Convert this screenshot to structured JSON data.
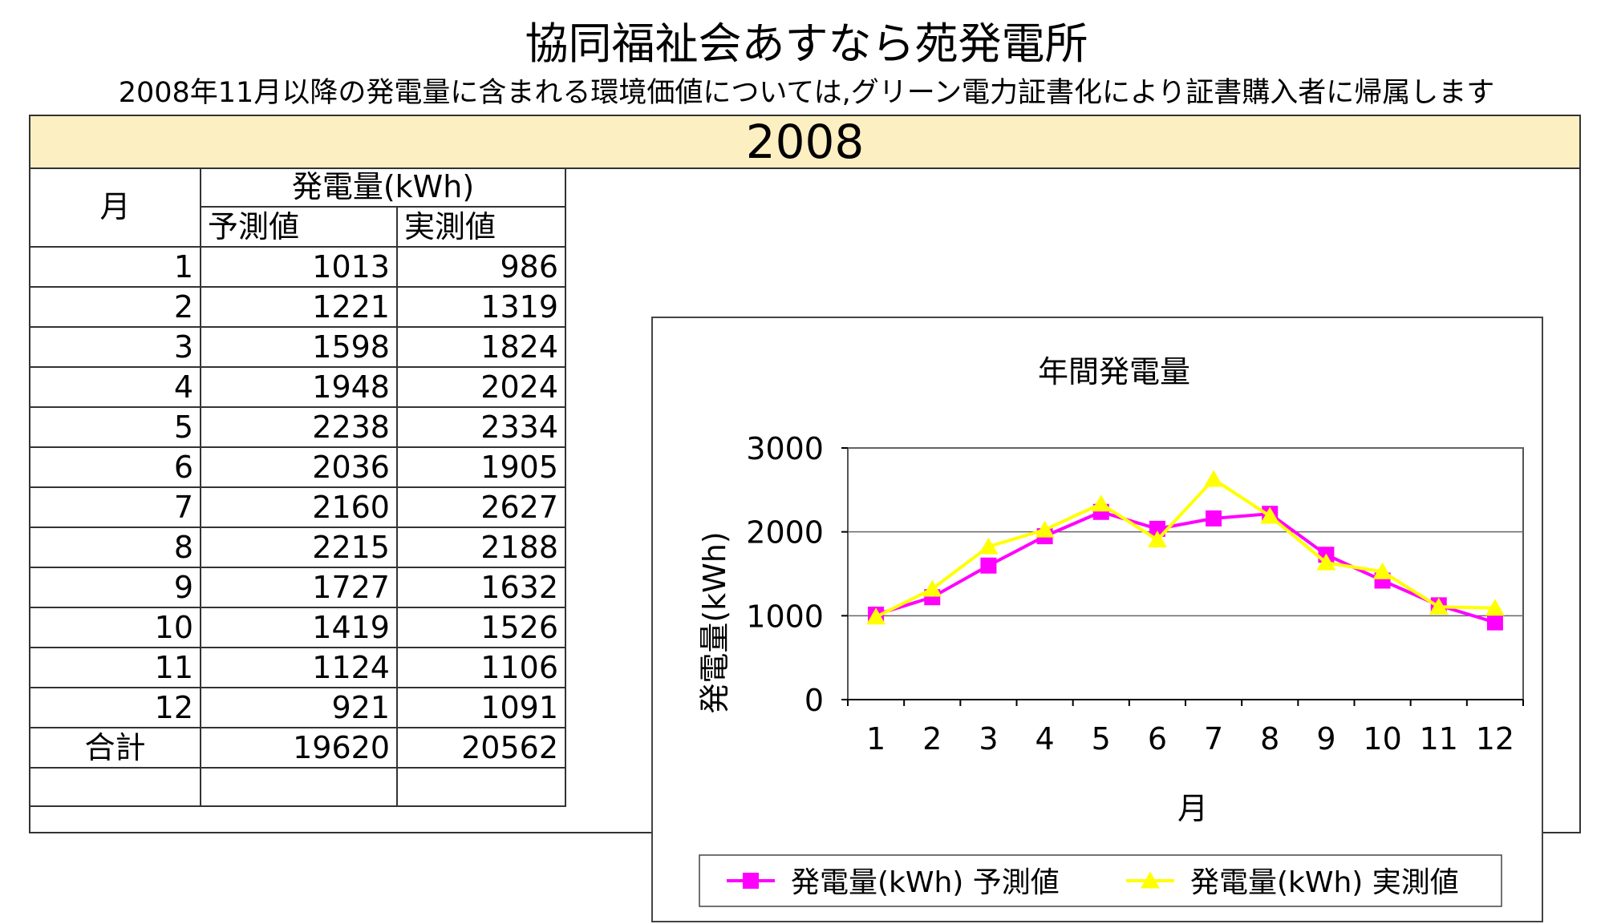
{
  "title": "協同福祉会あすなら苑発電所",
  "subtitle": "2008年11月以降の発電量に含まれる環境価値については,グリーン電力証書化により証書購入者に帰属します",
  "year": "2008",
  "table": {
    "month_header": "月",
    "group_header": "発電量(kWh)",
    "col_forecast": "予測値",
    "col_actual": "実測値",
    "rows": [
      {
        "month": "1",
        "forecast": "1013",
        "actual": "986"
      },
      {
        "month": "2",
        "forecast": "1221",
        "actual": "1319"
      },
      {
        "month": "3",
        "forecast": "1598",
        "actual": "1824"
      },
      {
        "month": "4",
        "forecast": "1948",
        "actual": "2024"
      },
      {
        "month": "5",
        "forecast": "2238",
        "actual": "2334"
      },
      {
        "month": "6",
        "forecast": "2036",
        "actual": "1905"
      },
      {
        "month": "7",
        "forecast": "2160",
        "actual": "2627"
      },
      {
        "month": "8",
        "forecast": "2215",
        "actual": "2188"
      },
      {
        "month": "9",
        "forecast": "1727",
        "actual": "1632"
      },
      {
        "month": "10",
        "forecast": "1419",
        "actual": "1526"
      },
      {
        "month": "11",
        "forecast": "1124",
        "actual": "1106"
      },
      {
        "month": "12",
        "forecast": "921",
        "actual": "1091"
      }
    ],
    "total_label": "合計",
    "total_forecast": "19620",
    "total_actual": "20562"
  },
  "chart_data": {
    "type": "line",
    "title": "年間発電量",
    "xlabel": "月",
    "ylabel": "発電量(kWh)",
    "categories": [
      "1",
      "2",
      "3",
      "4",
      "5",
      "6",
      "7",
      "8",
      "9",
      "10",
      "11",
      "12"
    ],
    "ylim": [
      0,
      3000
    ],
    "yticks": [
      0,
      1000,
      2000,
      3000
    ],
    "grid": "horizontal",
    "legend_position": "bottom",
    "series": [
      {
        "name": "発電量(kWh) 予測値",
        "color": "#ff00ff",
        "marker": "square",
        "values": [
          1013,
          1221,
          1598,
          1948,
          2238,
          2036,
          2160,
          2215,
          1727,
          1419,
          1124,
          921
        ]
      },
      {
        "name": "発電量(kWh) 実測値",
        "color": "#ffff00",
        "marker": "triangle",
        "values": [
          986,
          1319,
          1824,
          2024,
          2334,
          1905,
          2627,
          2188,
          1632,
          1526,
          1106,
          1091
        ]
      }
    ]
  }
}
